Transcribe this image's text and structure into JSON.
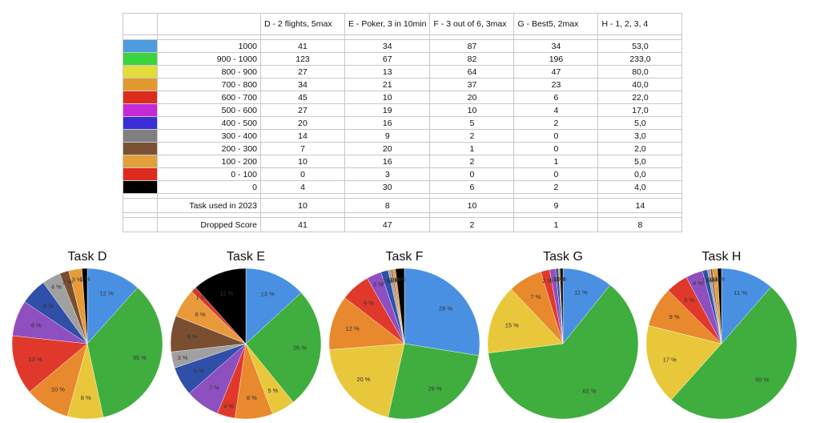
{
  "table": {
    "headers": [
      "D - 2 flights, 5max",
      "E - Poker, 3 in 10min",
      "F - 3 out of 6, 3max",
      "G - Best5, 2max",
      "H - 1, 2, 3, 4"
    ],
    "rows": [
      {
        "color": "#4f9be0",
        "label": "1000",
        "values": [
          "41",
          "34",
          "87",
          "34",
          "53,0"
        ]
      },
      {
        "color": "#3ad43f",
        "label": "900 - 1000",
        "values": [
          "123",
          "67",
          "82",
          "196",
          "233,0"
        ]
      },
      {
        "color": "#e4db3c",
        "label": "800 - 900",
        "values": [
          "27",
          "13",
          "64",
          "47",
          "80,0"
        ]
      },
      {
        "color": "#e29a30",
        "label": "700 - 800",
        "values": [
          "34",
          "21",
          "37",
          "23",
          "40,0"
        ]
      },
      {
        "color": "#df2a1e",
        "label": "600 - 700",
        "values": [
          "45",
          "10",
          "20",
          "6",
          "22,0"
        ]
      },
      {
        "color": "#c42ad6",
        "label": "500 - 600",
        "values": [
          "27",
          "19",
          "10",
          "4",
          "17,0"
        ]
      },
      {
        "color": "#3b2ed8",
        "label": "400 - 500",
        "values": [
          "20",
          "16",
          "5",
          "2",
          "5,0"
        ]
      },
      {
        "color": "#7f7f7f",
        "label": "300 - 400",
        "values": [
          "14",
          "9",
          "2",
          "0",
          "3,0"
        ]
      },
      {
        "color": "#7a5132",
        "label": "200 - 300",
        "values": [
          "7",
          "20",
          "1",
          "0",
          "2,0"
        ]
      },
      {
        "color": "#e2a03a",
        "label": "100 - 200",
        "values": [
          "10",
          "16",
          "2",
          "1",
          "5,0"
        ]
      },
      {
        "color": "#df2a1e",
        "label": "0 - 100",
        "values": [
          "0",
          "3",
          "0",
          "0",
          "0,0"
        ]
      },
      {
        "color": "#000000",
        "label": "0",
        "values": [
          "4",
          "30",
          "6",
          "2",
          "4,0"
        ]
      }
    ],
    "task_used": {
      "label": "Task used in 2023",
      "values": [
        "10",
        "8",
        "10",
        "9",
        "14"
      ]
    },
    "dropped": {
      "label": "Dropped Score",
      "values": [
        "41",
        "47",
        "2",
        "1",
        "8"
      ]
    }
  },
  "chart_data": [
    {
      "type": "pie",
      "title": "Task D",
      "slice_labels": [
        "12 %",
        "35 %",
        "8 %",
        "10 %",
        "13 %",
        "8 %",
        "6 %",
        "4 %",
        "2 %",
        "3 %",
        "",
        "1 %"
      ],
      "values": [
        41,
        123,
        27,
        34,
        45,
        27,
        20,
        14,
        7,
        10,
        0,
        4
      ]
    },
    {
      "type": "pie",
      "title": "Task E",
      "slice_labels": [
        "13 %",
        "26 %",
        "5 %",
        "8 %",
        "4 %",
        "7 %",
        "6 %",
        "3 %",
        "8 %",
        "6 %",
        "1 %",
        "12 %"
      ],
      "values": [
        34,
        67,
        13,
        21,
        10,
        19,
        16,
        9,
        20,
        16,
        3,
        30
      ]
    },
    {
      "type": "pie",
      "title": "Task F",
      "slice_labels": [
        "28 %",
        "26 %",
        "20 %",
        "12 %",
        "6 %",
        "3 %",
        "2 %",
        "1 %",
        "0 %",
        "1 %",
        "",
        "2 %"
      ],
      "values": [
        87,
        82,
        64,
        37,
        20,
        10,
        5,
        2,
        1,
        2,
        0,
        6
      ]
    },
    {
      "type": "pie",
      "title": "Task G",
      "slice_labels": [
        "11 %",
        "62 %",
        "15 %",
        "7 %",
        "2 %",
        "1 %",
        "1 %",
        "",
        "",
        "0 %",
        "",
        "1 %"
      ],
      "values": [
        34,
        196,
        47,
        23,
        6,
        4,
        2,
        0,
        0,
        1,
        0,
        2
      ]
    },
    {
      "type": "pie",
      "title": "Task H",
      "slice_labels": [
        "11 %",
        "50 %",
        "17 %",
        "9 %",
        "5 %",
        "4 %",
        "1 %",
        "1 %",
        "0 %",
        "1 %",
        "",
        "1 %"
      ],
      "values": [
        53,
        233,
        80,
        40,
        22,
        17,
        5,
        3,
        2,
        5,
        0,
        4
      ]
    }
  ],
  "slice_colors": [
    "#4a90e2",
    "#3fae3f",
    "#e8c83a",
    "#e8892d",
    "#e0392b",
    "#8e4fbf",
    "#2f4fa8",
    "#a0a0a0",
    "#7a4e30",
    "#e89a3a",
    "#d93a2a",
    "#000000"
  ]
}
